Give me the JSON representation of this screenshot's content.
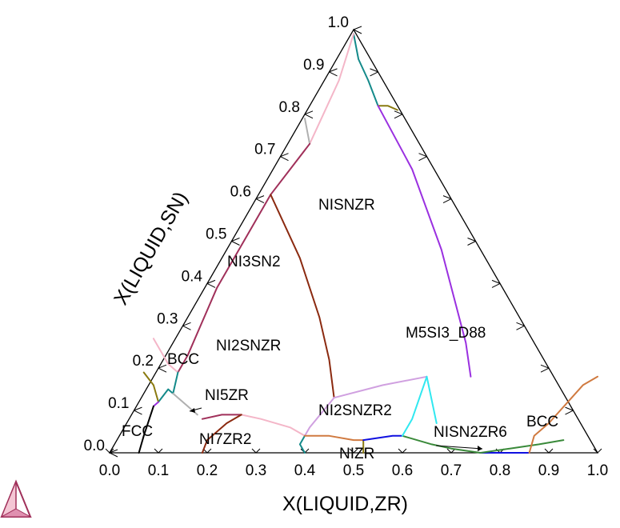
{
  "axes": {
    "x_title": "X(LIQUID,ZR)",
    "y_title": "X(LIQUID,SN)",
    "x_ticks": [
      "0.0",
      "0.1",
      "0.2",
      "0.3",
      "0.4",
      "0.5",
      "0.6",
      "0.7",
      "0.8",
      "0.9",
      "1.0"
    ],
    "y_ticks": [
      "0.0",
      "0.1",
      "0.2",
      "0.3",
      "0.4",
      "0.5",
      "0.6",
      "0.7",
      "0.8",
      "0.9",
      "1.0"
    ]
  },
  "regions": {
    "nisnzr": "NISNZR",
    "ni3sn2": "NI3SN2",
    "m5si3_d88": "M5SI3_D88",
    "ni2snzr": "NI2SNZR",
    "bcc_left": "BCC",
    "ni5zr": "NI5ZR",
    "fcc": "FCC",
    "ni7zr2": "NI7ZR2",
    "ni2snzr2": "NI2SNZR2",
    "nizr": "NIZR",
    "nisn2zr6": "NISN2ZR6",
    "bcc_right": "BCC"
  },
  "colors": {
    "frame": "#000000",
    "pink": "#f4b6c8",
    "maroon": "#a0305a",
    "brown": "#8b2a10",
    "purple": "#9a30e0",
    "teal": "#148a8a",
    "cyan": "#30e8f0",
    "gray": "#b0b0b0",
    "olive": "#8a7a10",
    "orange": "#d07a40",
    "blue": "#1010e0",
    "green": "#3a8a3a",
    "lilac": "#d0a0e0",
    "black": "#000000",
    "logo": "#a0305a"
  },
  "chart_data": {
    "type": "ternary-phase-diagram",
    "components": [
      "NI",
      "SN",
      "ZR"
    ],
    "xlabel": "X(LIQUID,ZR)",
    "ylabel": "X(LIQUID,SN)",
    "xlim": [
      0,
      1
    ],
    "ylim": [
      0,
      1
    ],
    "regions": [
      {
        "name": "NISNZR",
        "zr": 0.45,
        "sn": 0.52
      },
      {
        "name": "NI3SN2",
        "zr": 0.18,
        "sn": 0.43
      },
      {
        "name": "M5SI3_D88",
        "zr": 0.53,
        "sn": 0.26
      },
      {
        "name": "NI2SNZR",
        "zr": 0.17,
        "sn": 0.24
      },
      {
        "name": "BCC",
        "zr": 0.11,
        "sn": 0.19
      },
      {
        "name": "NI5ZR",
        "zr": 0.16,
        "sn": 0.12
      },
      {
        "name": "FCC",
        "zr": 0.05,
        "sn": 0.05
      },
      {
        "name": "NI7ZR2",
        "zr": 0.22,
        "sn": 0.02
      },
      {
        "name": "NI2SNZR2",
        "zr": 0.39,
        "sn": 0.08
      },
      {
        "name": "NIZR",
        "zr": 0.48,
        "sn": 0.0
      },
      {
        "name": "NISN2ZR6",
        "zr": 0.64,
        "sn": 0.04
      },
      {
        "name": "BCC",
        "zr": 0.84,
        "sn": 0.06
      }
    ],
    "curves": [
      {
        "color": "teal",
        "points": [
          [
            0.0,
            0.99
          ],
          [
            0.01,
            0.93
          ],
          [
            0.03,
            0.88
          ],
          [
            0.05,
            0.82
          ]
        ]
      },
      {
        "color": "olive",
        "points": [
          [
            0.05,
            0.82
          ],
          [
            0.07,
            0.82
          ],
          [
            0.09,
            0.81
          ]
        ]
      },
      {
        "color": "purple",
        "points": [
          [
            0.05,
            0.82
          ],
          [
            0.12,
            0.67
          ],
          [
            0.18,
            0.48
          ],
          [
            0.23,
            0.26
          ],
          [
            0.24,
            0.18
          ]
        ]
      },
      {
        "color": "pink",
        "points": [
          [
            0.0,
            0.99
          ],
          [
            -0.03,
            0.88
          ],
          [
            -0.07,
            0.78
          ],
          [
            -0.09,
            0.73
          ]
        ]
      },
      {
        "color": "gray",
        "points": [
          [
            -0.09,
            0.73
          ],
          [
            -0.1,
            0.79
          ]
        ]
      },
      {
        "color": "maroon",
        "points": [
          [
            -0.09,
            0.73
          ],
          [
            -0.17,
            0.61
          ],
          [
            -0.22,
            0.51
          ],
          [
            -0.28,
            0.39
          ],
          [
            -0.34,
            0.23
          ],
          [
            -0.36,
            0.19
          ]
        ]
      },
      {
        "color": "brown",
        "points": [
          [
            -0.17,
            0.61
          ],
          [
            -0.11,
            0.46
          ],
          [
            -0.07,
            0.32
          ],
          [
            -0.05,
            0.22
          ],
          [
            -0.04,
            0.13
          ]
        ]
      },
      {
        "color": "lilac",
        "points": [
          [
            -0.04,
            0.13
          ],
          [
            0.06,
            0.16
          ],
          [
            0.15,
            0.18
          ]
        ]
      },
      {
        "color": "cyan",
        "points": [
          [
            0.15,
            0.18
          ],
          [
            0.17,
            0.07
          ]
        ]
      },
      {
        "color": "lilac",
        "points": [
          [
            -0.04,
            0.13
          ],
          [
            -0.09,
            0.06
          ],
          [
            -0.1,
            0.04
          ]
        ]
      },
      {
        "color": "pink",
        "points": [
          [
            -0.1,
            0.04
          ],
          [
            -0.13,
            0.06
          ],
          [
            -0.19,
            0.08
          ],
          [
            -0.23,
            0.09
          ]
        ]
      },
      {
        "color": "maroon",
        "points": [
          [
            -0.23,
            0.09
          ],
          [
            -0.27,
            0.09
          ],
          [
            -0.31,
            0.08
          ]
        ]
      },
      {
        "color": "pink",
        "points": [
          [
            -0.36,
            0.19
          ],
          [
            -0.38,
            0.21
          ],
          [
            -0.41,
            0.27
          ]
        ]
      },
      {
        "color": "teal",
        "points": [
          [
            -0.36,
            0.19
          ],
          [
            -0.37,
            0.14
          ],
          [
            -0.38,
            0.15
          ],
          [
            -0.4,
            0.12
          ]
        ]
      },
      {
        "color": "olive",
        "points": [
          [
            -0.4,
            0.12
          ],
          [
            -0.41,
            0.16
          ],
          [
            -0.43,
            0.19
          ]
        ]
      },
      {
        "color": "purple",
        "points": [
          [
            -0.4,
            0.12
          ],
          [
            -0.41,
            0.11
          ]
        ]
      },
      {
        "color": "gray",
        "points": [
          [
            -0.37,
            0.14
          ],
          [
            -0.34,
            0.11
          ],
          [
            -0.32,
            0.09
          ]
        ]
      },
      {
        "color": "brown",
        "points": [
          [
            -0.23,
            0.09
          ],
          [
            -0.26,
            0.07
          ],
          [
            -0.3,
            0.03
          ],
          [
            -0.31,
            0.0
          ]
        ]
      },
      {
        "color": "black",
        "points": [
          [
            -0.41,
            0.11
          ],
          [
            -0.43,
            0.04
          ],
          [
            -0.44,
            0.0
          ]
        ]
      },
      {
        "color": "teal",
        "points": [
          [
            -0.1,
            0.04
          ],
          [
            -0.11,
            0.02
          ],
          [
            -0.1,
            0.0
          ]
        ]
      },
      {
        "color": "orange",
        "points": [
          [
            -0.1,
            0.04
          ],
          [
            -0.05,
            0.04
          ],
          [
            0.0,
            0.03
          ],
          [
            0.02,
            0.03
          ]
        ]
      },
      {
        "color": "olive",
        "points": [
          [
            0.02,
            0.03
          ],
          [
            0.02,
            0.0
          ]
        ]
      },
      {
        "color": "blue",
        "points": [
          [
            0.02,
            0.03
          ],
          [
            0.08,
            0.04
          ],
          [
            0.1,
            0.04
          ]
        ]
      },
      {
        "color": "green",
        "points": [
          [
            0.1,
            0.04
          ],
          [
            0.16,
            0.02
          ],
          [
            0.2,
            0.01
          ],
          [
            0.26,
            0.0
          ]
        ]
      },
      {
        "color": "blue",
        "points": [
          [
            0.26,
            0.0
          ],
          [
            0.32,
            0.0
          ],
          [
            0.36,
            0.0
          ]
        ]
      },
      {
        "color": "green",
        "points": [
          [
            0.26,
            0.0
          ],
          [
            0.32,
            0.01
          ],
          [
            0.38,
            0.02
          ],
          [
            0.43,
            0.03
          ]
        ]
      },
      {
        "color": "orange",
        "points": [
          [
            0.36,
            0.0
          ],
          [
            0.37,
            0.04
          ],
          [
            0.4,
            0.07
          ],
          [
            0.47,
            0.16
          ],
          [
            0.5,
            0.18
          ]
        ]
      },
      {
        "color": "cyan",
        "points": [
          [
            0.1,
            0.04
          ],
          [
            0.12,
            0.08
          ],
          [
            0.15,
            0.18
          ]
        ]
      }
    ]
  }
}
